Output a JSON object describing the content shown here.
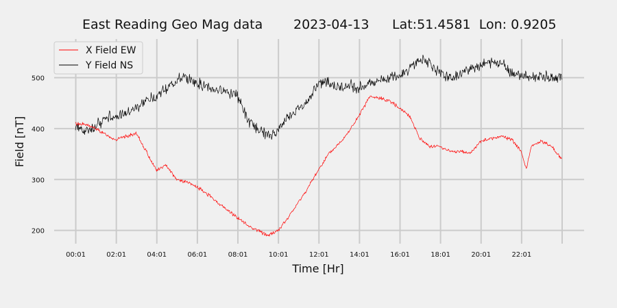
{
  "chart_data": {
    "type": "line",
    "title_parts": [
      "East Reading Geo Mag data",
      "2023-04-13",
      "Lat:51.4581  Lon: 0.9205"
    ],
    "xlabel": "Time  [Hr]",
    "ylabel": "Field  [nT]",
    "x_unit": "hour of day",
    "x_ticks": [
      0.0167,
      2.0167,
      4.0167,
      6.0167,
      8.0167,
      10.0167,
      12.0167,
      14.0167,
      16.0167,
      18.0167,
      20.0167,
      22.0167,
      24.0167
    ],
    "x_tick_labels": [
      "00:01",
      "02:01",
      "04:01",
      "06:01",
      "08:01",
      "10:01",
      "12:01",
      "14:01",
      "16:01",
      "18:01",
      "20:01",
      "22:01",
      ""
    ],
    "xlim": [
      -1.05,
      25.1
    ],
    "y_ticks": [
      200,
      300,
      400,
      500
    ],
    "y_tick_labels": [
      "200",
      "300",
      "400",
      "500"
    ],
    "ylim": [
      174,
      576
    ],
    "grid": true,
    "legend_position": "top-left",
    "series": [
      {
        "name": "X Field EW",
        "color": "#ff0000",
        "x": [
          0.0,
          0.5,
          1.0,
          1.5,
          2.0,
          2.5,
          3.0,
          3.5,
          4.0,
          4.5,
          5.0,
          5.5,
          6.0,
          6.5,
          7.0,
          7.5,
          8.0,
          8.5,
          9.0,
          9.5,
          10.0,
          10.5,
          11.0,
          11.5,
          12.0,
          12.5,
          13.0,
          13.5,
          14.0,
          14.5,
          15.0,
          15.5,
          16.0,
          16.5,
          17.0,
          17.5,
          18.0,
          18.5,
          19.0,
          19.5,
          20.0,
          20.5,
          21.0,
          21.5,
          22.0,
          22.25,
          22.5,
          23.0,
          23.5,
          24.0
        ],
        "y": [
          410,
          408,
          400,
          388,
          378,
          385,
          390,
          355,
          318,
          328,
          300,
          295,
          285,
          272,
          255,
          240,
          225,
          210,
          200,
          190,
          200,
          225,
          255,
          285,
          320,
          350,
          370,
          395,
          425,
          462,
          460,
          455,
          440,
          425,
          380,
          365,
          365,
          355,
          355,
          352,
          375,
          380,
          385,
          380,
          355,
          320,
          365,
          375,
          365,
          340
        ]
      },
      {
        "name": "Y Field NS",
        "color": "#000000",
        "x": [
          0.0,
          0.5,
          1.0,
          1.5,
          2.0,
          2.5,
          3.0,
          3.5,
          4.0,
          4.5,
          5.0,
          5.5,
          6.0,
          6.5,
          7.0,
          7.5,
          8.0,
          8.5,
          9.0,
          9.5,
          10.0,
          10.5,
          11.0,
          11.5,
          12.0,
          12.5,
          13.0,
          13.5,
          14.0,
          14.5,
          15.0,
          15.5,
          16.0,
          16.5,
          17.0,
          17.5,
          18.0,
          18.5,
          19.0,
          19.5,
          20.0,
          20.5,
          21.0,
          21.5,
          22.0,
          22.5,
          23.0,
          23.5,
          24.0
        ],
        "y": [
          405,
          395,
          405,
          420,
          425,
          430,
          440,
          455,
          465,
          480,
          495,
          500,
          490,
          480,
          475,
          475,
          465,
          415,
          400,
          385,
          395,
          425,
          440,
          455,
          490,
          490,
          480,
          485,
          480,
          490,
          495,
          500,
          505,
          520,
          535,
          530,
          505,
          500,
          505,
          520,
          525,
          530,
          530,
          510,
          505,
          500,
          505,
          500,
          505
        ]
      }
    ]
  }
}
